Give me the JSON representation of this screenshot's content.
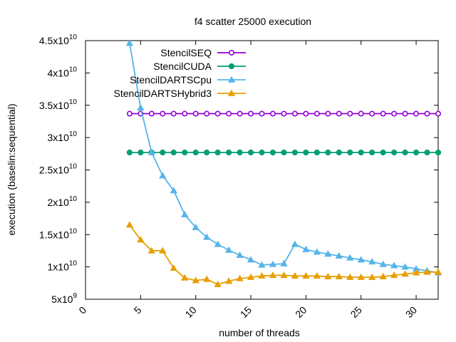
{
  "chart_data": {
    "type": "line",
    "title": "f4 scatter 25000 execution",
    "xlabel": "number of threads",
    "ylabel": "execution (baselin:sequential)",
    "xlim": [
      0,
      32
    ],
    "ylim": [
      5000000000,
      45000000000
    ],
    "xticks": [
      0,
      5,
      10,
      15,
      20,
      25,
      30
    ],
    "xtick_labels": [
      "0",
      "5",
      "10",
      "15",
      "20",
      "25",
      "30"
    ],
    "yticks": [
      5000000000,
      10000000000,
      15000000000,
      20000000000,
      25000000000,
      30000000000,
      35000000000,
      40000000000,
      45000000000
    ],
    "ytick_labels": [
      {
        "mant": "5x10",
        "exp": "9"
      },
      {
        "mant": "1x10",
        "exp": "10"
      },
      {
        "mant": "1.5x10",
        "exp": "10"
      },
      {
        "mant": "2x10",
        "exp": "10"
      },
      {
        "mant": "2.5x10",
        "exp": "10"
      },
      {
        "mant": "3x10",
        "exp": "10"
      },
      {
        "mant": "3.5x10",
        "exp": "10"
      },
      {
        "mant": "4x10",
        "exp": "10"
      },
      {
        "mant": "4.5x10",
        "exp": "10"
      }
    ],
    "grid": false,
    "legend_position": "top-right",
    "x": [
      4,
      5,
      6,
      7,
      8,
      9,
      10,
      11,
      12,
      13,
      14,
      15,
      16,
      17,
      18,
      19,
      20,
      21,
      22,
      23,
      24,
      25,
      26,
      27,
      28,
      29,
      30,
      31,
      32
    ],
    "series": [
      {
        "name": "StencilSEQ",
        "color": "#9400d3",
        "marker": "open-circle",
        "values": [
          33700000000,
          33700000000,
          33700000000,
          33700000000,
          33700000000,
          33700000000,
          33700000000,
          33700000000,
          33700000000,
          33700000000,
          33700000000,
          33700000000,
          33700000000,
          33700000000,
          33700000000,
          33700000000,
          33700000000,
          33700000000,
          33700000000,
          33700000000,
          33700000000,
          33700000000,
          33700000000,
          33700000000,
          33700000000,
          33700000000,
          33700000000,
          33700000000,
          33700000000
        ]
      },
      {
        "name": "StencilCUDA",
        "color": "#009e73",
        "marker": "filled-circle",
        "values": [
          27700000000,
          27700000000,
          27700000000,
          27700000000,
          27700000000,
          27700000000,
          27700000000,
          27700000000,
          27700000000,
          27700000000,
          27700000000,
          27700000000,
          27700000000,
          27700000000,
          27700000000,
          27700000000,
          27700000000,
          27700000000,
          27700000000,
          27700000000,
          27700000000,
          27700000000,
          27700000000,
          27700000000,
          27700000000,
          27700000000,
          27700000000,
          27700000000,
          27700000000
        ]
      },
      {
        "name": "StencilDARTSCpu",
        "color": "#56b4e9",
        "marker": "filled-triangle",
        "values": [
          44600000000,
          34600000000,
          27700000000,
          24100000000,
          21800000000,
          18100000000,
          16100000000,
          14600000000,
          13500000000,
          12600000000,
          11800000000,
          11100000000,
          10300000000,
          10400000000,
          10500000000,
          13500000000,
          12700000000,
          12300000000,
          12000000000,
          11700000000,
          11400000000,
          11100000000,
          10800000000,
          10400000000,
          10200000000,
          10000000000,
          9700000000,
          9400000000,
          9100000000
        ]
      },
      {
        "name": "StencilDARTSHybrid3",
        "color": "#e69f00",
        "marker": "filled-triangle",
        "values": [
          16500000000,
          14200000000,
          12500000000,
          12500000000,
          9800000000,
          8300000000,
          7900000000,
          8100000000,
          7300000000,
          7800000000,
          8200000000,
          8400000000,
          8600000000,
          8700000000,
          8700000000,
          8600000000,
          8600000000,
          8600000000,
          8500000000,
          8500000000,
          8400000000,
          8400000000,
          8400000000,
          8500000000,
          8700000000,
          8900000000,
          9100000000,
          9200000000,
          9200000000
        ]
      }
    ]
  }
}
